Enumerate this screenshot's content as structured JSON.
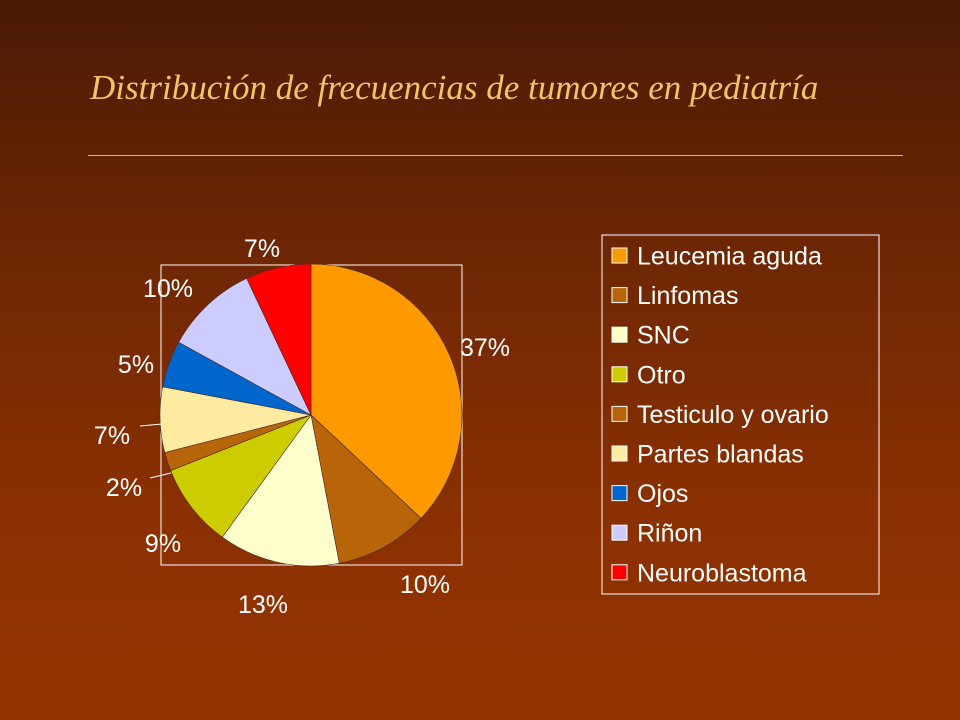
{
  "slide": {
    "title": "Distribución de frecuencias de tumores en pediatría"
  },
  "colors": {
    "title": "#f2c46a",
    "labels": "#ffffff",
    "frame": "#ffffff"
  },
  "chart_data": {
    "type": "pie",
    "title": "",
    "legend_position": "right",
    "slices": [
      {
        "name": "Leucemia aguda",
        "value": 37,
        "label": "37%",
        "color": "#ff9900"
      },
      {
        "name": "Linfomas",
        "value": 10,
        "label": "10%",
        "color": "#b8650a"
      },
      {
        "name": "SNC",
        "value": 13,
        "label": "13%",
        "color": "#ffffcc"
      },
      {
        "name": "Otro",
        "value": 9,
        "label": "9%",
        "color": "#cccc00"
      },
      {
        "name": "Testiculo y ovario",
        "value": 2,
        "label": "2%",
        "color": "#b8650a"
      },
      {
        "name": "Partes blandas",
        "value": 7,
        "label": "7%",
        "color": "#ffeba0"
      },
      {
        "name": "Ojos",
        "value": 5,
        "label": "5%",
        "color": "#0066cc"
      },
      {
        "name": "Riñon",
        "value": 10,
        "label": "10%",
        "color": "#ccccff"
      },
      {
        "name": "Neuroblastoma",
        "value": 7,
        "label": "7%",
        "color": "#ff0000"
      }
    ]
  }
}
